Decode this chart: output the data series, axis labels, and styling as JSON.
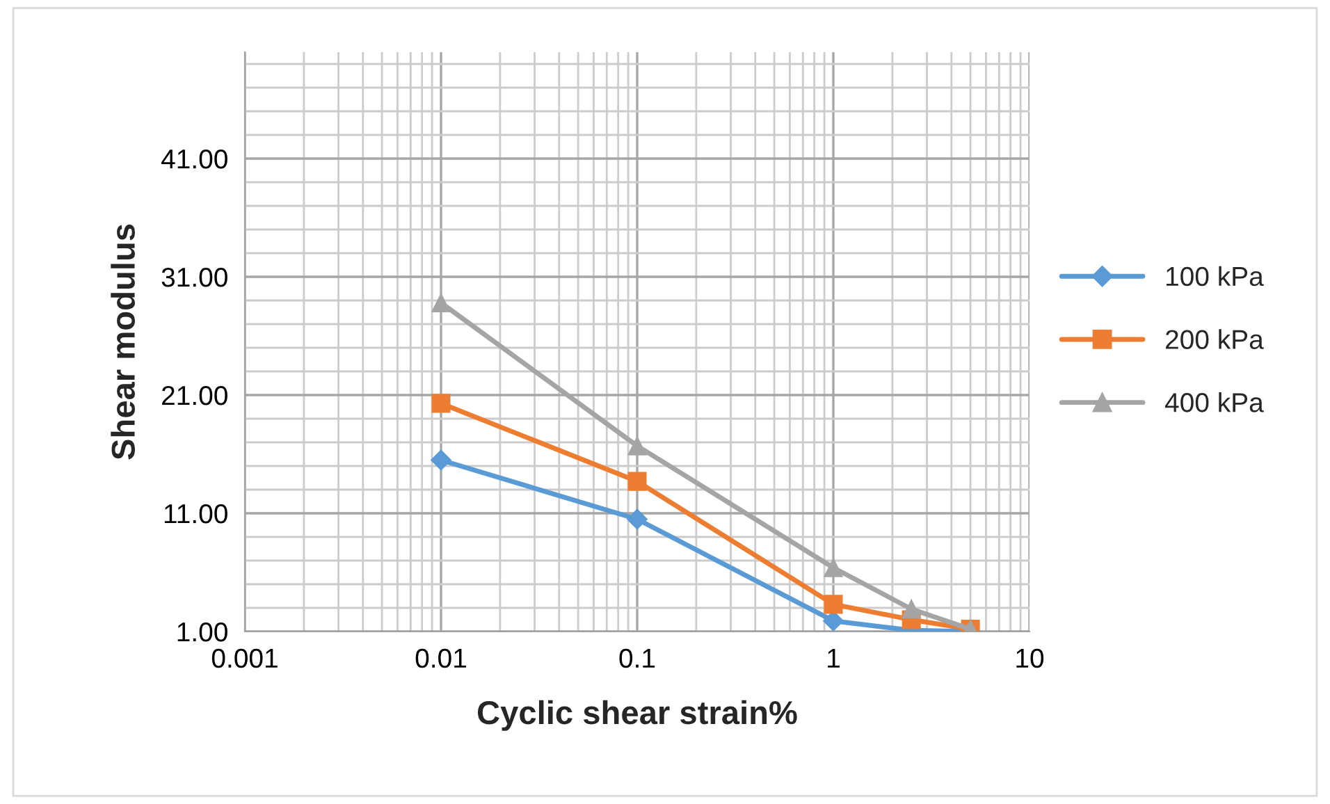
{
  "chart_data": {
    "type": "line",
    "xlabel": "Cyclic shear strain%",
    "ylabel": "Shear modulus",
    "x": [
      0.01,
      0.1,
      1,
      2.5,
      5
    ],
    "series": [
      {
        "name": "100 kPa",
        "color": "#5b9bd5",
        "marker": "diamond",
        "values": [
          15.5,
          10.5,
          1.9,
          1.1,
          1.0
        ]
      },
      {
        "name": "200 kPa",
        "color": "#ed7d31",
        "marker": "square",
        "values": [
          20.3,
          13.7,
          3.3,
          2.0,
          1.2
        ]
      },
      {
        "name": "400 kPa",
        "color": "#a5a5a5",
        "marker": "triangle",
        "values": [
          28.8,
          16.7,
          6.4,
          2.9,
          1.2
        ]
      }
    ],
    "log": "x",
    "xlim": [
      0.001,
      10
    ],
    "xticks": [
      0.001,
      0.01,
      0.1,
      1,
      10
    ],
    "ylim": [
      1,
      50
    ],
    "yticks": [
      {
        "value": 1,
        "label": "1.00"
      },
      {
        "value": 11,
        "label": "11.00"
      },
      {
        "value": 21,
        "label": "21.00"
      },
      {
        "value": 31,
        "label": "31.00"
      },
      {
        "value": 41,
        "label": "41.00"
      }
    ],
    "grid": true,
    "legend": "right",
    "line_style": "solid"
  }
}
